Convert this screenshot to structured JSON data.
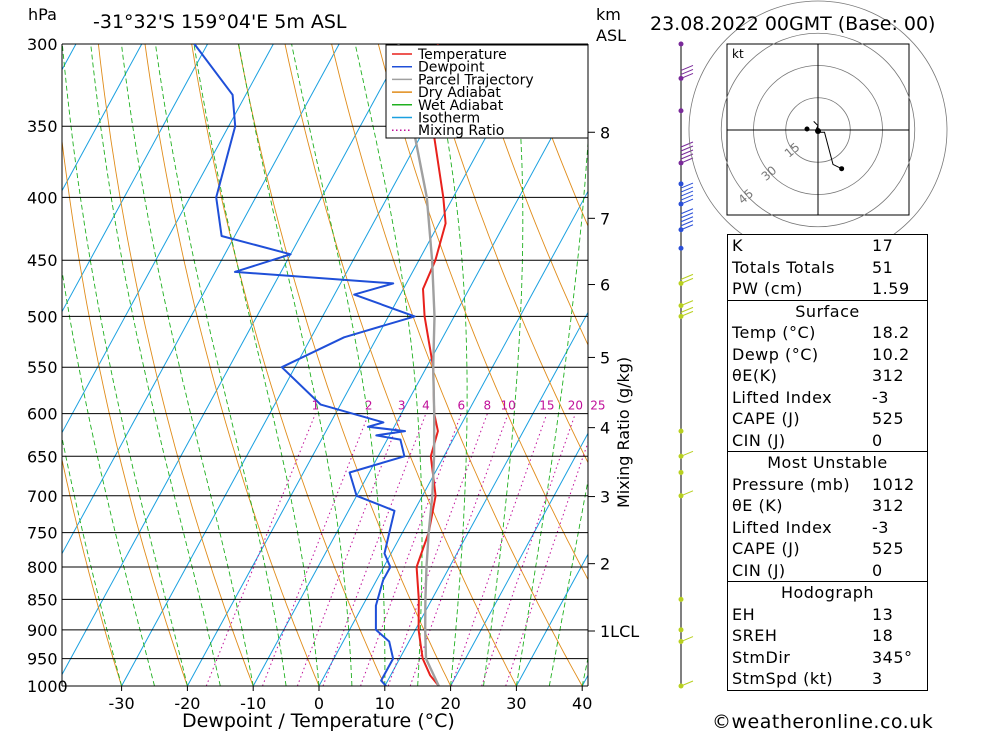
{
  "header": {
    "hpa_label": "hPa",
    "location": "-31°32'S 159°04'E 5m ASL",
    "km_label": "km",
    "asl_label": "ASL",
    "datetime": "23.08.2022 00GMT (Base: 00)"
  },
  "legend": [
    {
      "label": "Temperature",
      "color": "#e8211c",
      "style": "solid"
    },
    {
      "label": "Dewpoint",
      "color": "#1f4fd8",
      "style": "solid"
    },
    {
      "label": "Parcel Trajectory",
      "color": "#a0a0a0",
      "style": "solid"
    },
    {
      "label": "Dry Adiabat",
      "color": "#e08c1a",
      "style": "solid"
    },
    {
      "label": "Wet Adiabat",
      "color": "#20b020",
      "style": "solid"
    },
    {
      "label": "Isotherm",
      "color": "#1aa0e0",
      "style": "solid"
    },
    {
      "label": "Mixing Ratio",
      "color": "#c0109a",
      "style": "dotted"
    }
  ],
  "colors": {
    "temperature": "#e8211c",
    "dewpoint": "#1f4fd8",
    "parcel": "#a0a0a0",
    "dry_adiabat": "#e08c1a",
    "wet_adiabat": "#20b020",
    "isotherm": "#1aa0e0",
    "mixing_ratio": "#c0109a",
    "wind_high": "#7a2a9a",
    "wind_mid": "#2a4fd8",
    "wind_low": "#b8d020"
  },
  "chart_data": {
    "type": "line",
    "chart_kind": "skew-T log-P sounding",
    "xlabel": "Dewpoint / Temperature (°C)",
    "x_ticks": [
      -30,
      -20,
      -10,
      0,
      10,
      20,
      30,
      40
    ],
    "pressure_ticks": [
      300,
      350,
      400,
      450,
      500,
      550,
      600,
      650,
      700,
      750,
      800,
      850,
      900,
      950,
      1000
    ],
    "pressure_range_hpa": [
      300,
      1000
    ],
    "y_scale": "log",
    "km_ticks": [
      {
        "km": "8",
        "p": 354
      },
      {
        "km": "7",
        "p": 416
      },
      {
        "km": "6",
        "p": 471
      },
      {
        "km": "5",
        "p": 540
      },
      {
        "km": "4",
        "p": 616
      },
      {
        "km": "3",
        "p": 701
      },
      {
        "km": "2",
        "p": 795
      },
      {
        "km": "1LCL",
        "p": 902
      }
    ],
    "mixing_ratio_labels": [
      "1",
      "2",
      "3",
      "4",
      "6",
      "8",
      "10",
      "15",
      "20",
      "25"
    ],
    "mixing_ratio_axis_label": "Mixing Ratio (g/kg)",
    "series": [
      {
        "name": "Temperature",
        "points": [
          [
            1000,
            18.2
          ],
          [
            980,
            16.0
          ],
          [
            950,
            13.5
          ],
          [
            925,
            12.0
          ],
          [
            900,
            10.5
          ],
          [
            850,
            8.0
          ],
          [
            800,
            5.0
          ],
          [
            750,
            4.0
          ],
          [
            700,
            2.0
          ],
          [
            650,
            -2.0
          ],
          [
            620,
            -3.0
          ],
          [
            600,
            -5.0
          ],
          [
            550,
            -9.0
          ],
          [
            500,
            -14.5
          ],
          [
            475,
            -17.0
          ],
          [
            450,
            -17.5
          ],
          [
            420,
            -19.0
          ],
          [
            400,
            -21.5
          ],
          [
            350,
            -29.0
          ],
          [
            300,
            -35.0
          ]
        ]
      },
      {
        "name": "Dewpoint",
        "points": [
          [
            1000,
            10.2
          ],
          [
            990,
            9.0
          ],
          [
            950,
            9.0
          ],
          [
            920,
            7.0
          ],
          [
            900,
            4.0
          ],
          [
            860,
            2.0
          ],
          [
            820,
            1.0
          ],
          [
            800,
            1.0
          ],
          [
            780,
            -1.0
          ],
          [
            750,
            -2.0
          ],
          [
            720,
            -3.0
          ],
          [
            700,
            -10.0
          ],
          [
            670,
            -13.0
          ],
          [
            650,
            -6.0
          ],
          [
            630,
            -8.0
          ],
          [
            625,
            -12.0
          ],
          [
            620,
            -8.0
          ],
          [
            615,
            -14.0
          ],
          [
            610,
            -12.0
          ],
          [
            590,
            -23.0
          ],
          [
            550,
            -32.0
          ],
          [
            520,
            -25.0
          ],
          [
            500,
            -16.0
          ],
          [
            480,
            -27.0
          ],
          [
            470,
            -22.0
          ],
          [
            460,
            -47.0
          ],
          [
            445,
            -40.0
          ],
          [
            430,
            -52.0
          ],
          [
            400,
            -56.0
          ],
          [
            350,
            -59.0
          ],
          [
            330,
            -62.0
          ],
          [
            300,
            -72.0
          ]
        ]
      },
      {
        "name": "Parcel Trajectory",
        "points": [
          [
            1000,
            18.2
          ],
          [
            950,
            14.0
          ],
          [
            900,
            11.5
          ],
          [
            850,
            9.0
          ],
          [
            800,
            6.5
          ],
          [
            750,
            4.0
          ],
          [
            700,
            1.5
          ],
          [
            650,
            -1.5
          ],
          [
            600,
            -5.0
          ],
          [
            550,
            -9.0
          ],
          [
            500,
            -13.0
          ],
          [
            450,
            -18.0
          ],
          [
            400,
            -24.0
          ],
          [
            350,
            -32.0
          ],
          [
            300,
            -41.0
          ]
        ]
      }
    ],
    "wind_barbs": [
      {
        "p": 300,
        "speed_kt": 0
      },
      {
        "p": 320,
        "speed_kt": 30
      },
      {
        "p": 340,
        "speed_kt": 0
      },
      {
        "p": 375,
        "speed_kt": 60
      },
      {
        "p": 390,
        "speed_kt": 0
      },
      {
        "p": 405,
        "speed_kt": 55
      },
      {
        "p": 425,
        "speed_kt": 50
      },
      {
        "p": 440,
        "speed_kt": 0
      },
      {
        "p": 470,
        "speed_kt": 15
      },
      {
        "p": 490,
        "speed_kt": 10
      },
      {
        "p": 500,
        "speed_kt": 20
      },
      {
        "p": 620,
        "speed_kt": 0
      },
      {
        "p": 650,
        "speed_kt": 10
      },
      {
        "p": 670,
        "speed_kt": 0
      },
      {
        "p": 700,
        "speed_kt": 10
      },
      {
        "p": 850,
        "speed_kt": 0
      },
      {
        "p": 900,
        "speed_kt": 0
      },
      {
        "p": 920,
        "speed_kt": 10
      },
      {
        "p": 1000,
        "speed_kt": 5
      }
    ],
    "hodograph": {
      "units_label": "kt",
      "rings_kt": [
        "15",
        "30",
        "45"
      ],
      "trace_uv": [
        [
          -2,
          4
        ],
        [
          0,
          2
        ],
        [
          -1,
          0
        ],
        [
          0,
          -1
        ],
        [
          3,
          -1
        ],
        [
          7,
          -16
        ],
        [
          11,
          -18
        ]
      ]
    }
  },
  "indices": {
    "rows": [
      {
        "label": "K",
        "value": "17"
      },
      {
        "label": "Totals Totals",
        "value": "51"
      },
      {
        "label": "PW (cm)",
        "value": "1.59"
      }
    ]
  },
  "surface": {
    "title": "Surface",
    "rows": [
      {
        "label": "Temp (°C)",
        "value": "18.2"
      },
      {
        "label": "Dewp (°C)",
        "value": "10.2"
      },
      {
        "label": "θE(K)",
        "value": "312"
      },
      {
        "label": "Lifted Index",
        "value": "-3"
      },
      {
        "label": "CAPE (J)",
        "value": "525"
      },
      {
        "label": "CIN (J)",
        "value": "0"
      }
    ]
  },
  "most_unstable": {
    "title": "Most Unstable",
    "rows": [
      {
        "label": "Pressure (mb)",
        "value": "1012"
      },
      {
        "label": "θE (K)",
        "value": "312"
      },
      {
        "label": "Lifted Index",
        "value": "-3"
      },
      {
        "label": "CAPE (J)",
        "value": "525"
      },
      {
        "label": "CIN (J)",
        "value": "0"
      }
    ]
  },
  "hodograph_table": {
    "title": "Hodograph",
    "rows": [
      {
        "label": "EH",
        "value": "13"
      },
      {
        "label": "SREH",
        "value": "18"
      },
      {
        "label": "StmDir",
        "value": "345°"
      },
      {
        "label": "StmSpd (kt)",
        "value": "3"
      }
    ]
  },
  "footer": "©weatheronline.co.uk"
}
